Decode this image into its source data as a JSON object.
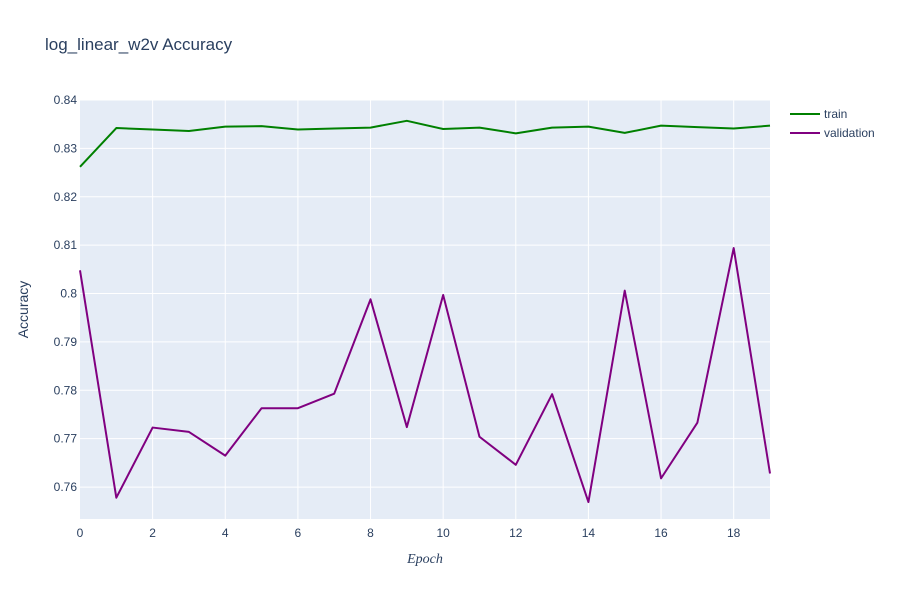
{
  "chart_data": {
    "type": "line",
    "title": "log_linear_w2v Accuracy",
    "xlabel": "Epoch",
    "ylabel": "Accuracy",
    "x": [
      0,
      1,
      2,
      3,
      4,
      5,
      6,
      7,
      8,
      9,
      10,
      11,
      12,
      13,
      14,
      15,
      16,
      17,
      18,
      19
    ],
    "xlim": [
      0,
      19
    ],
    "ylim": [
      0.7534,
      0.84
    ],
    "xticks": [
      0,
      2,
      4,
      6,
      8,
      10,
      12,
      14,
      16,
      18
    ],
    "xtick_labels": [
      "0",
      "2",
      "4",
      "6",
      "8",
      "10",
      "12",
      "14",
      "16",
      "18"
    ],
    "yticks": [
      0.76,
      0.77,
      0.78,
      0.79,
      0.8,
      0.81,
      0.82,
      0.83,
      0.84
    ],
    "ytick_labels": [
      "0.76",
      "0.77",
      "0.78",
      "0.79",
      "0.8",
      "0.81",
      "0.82",
      "0.83",
      "0.84"
    ],
    "grid": true,
    "legend_position": "top-right",
    "plot_bgcolor": "#e5ecf6",
    "series": [
      {
        "name": "train",
        "color": "#008000",
        "values": [
          0.8262,
          0.8342,
          0.8339,
          0.8336,
          0.8345,
          0.8346,
          0.8339,
          0.8341,
          0.8343,
          0.8357,
          0.834,
          0.8343,
          0.8331,
          0.8343,
          0.8345,
          0.8332,
          0.8347,
          0.8344,
          0.8341,
          0.8347
        ]
      },
      {
        "name": "validation",
        "color": "#800080",
        "values": [
          0.8048,
          0.7578,
          0.7723,
          0.7714,
          0.7665,
          0.7763,
          0.7763,
          0.7793,
          0.7988,
          0.7724,
          0.7997,
          0.7704,
          0.7646,
          0.7792,
          0.7569,
          0.8006,
          0.7618,
          0.7733,
          0.8094,
          0.7628
        ]
      }
    ]
  }
}
